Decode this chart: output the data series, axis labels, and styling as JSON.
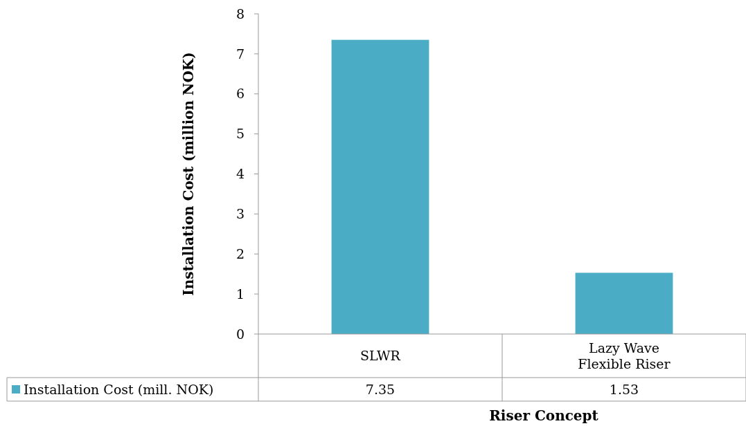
{
  "chart_data": {
    "type": "bar",
    "xlabel": "Riser Concept",
    "ylabel": "Installation Cost (million NOK)",
    "categories": [
      "SLWR",
      "Lazy Wave Flexible Riser"
    ],
    "series": [
      {
        "name": "Installation Cost (mill. NOK)",
        "color": "#4bacc6",
        "values": [
          7.35,
          1.53
        ]
      }
    ],
    "ylim": [
      0,
      8
    ],
    "yticks": [
      0,
      1,
      2,
      3,
      4,
      5,
      6,
      7,
      8
    ],
    "data_labels": true,
    "legend": "bottom left",
    "grid": false
  }
}
